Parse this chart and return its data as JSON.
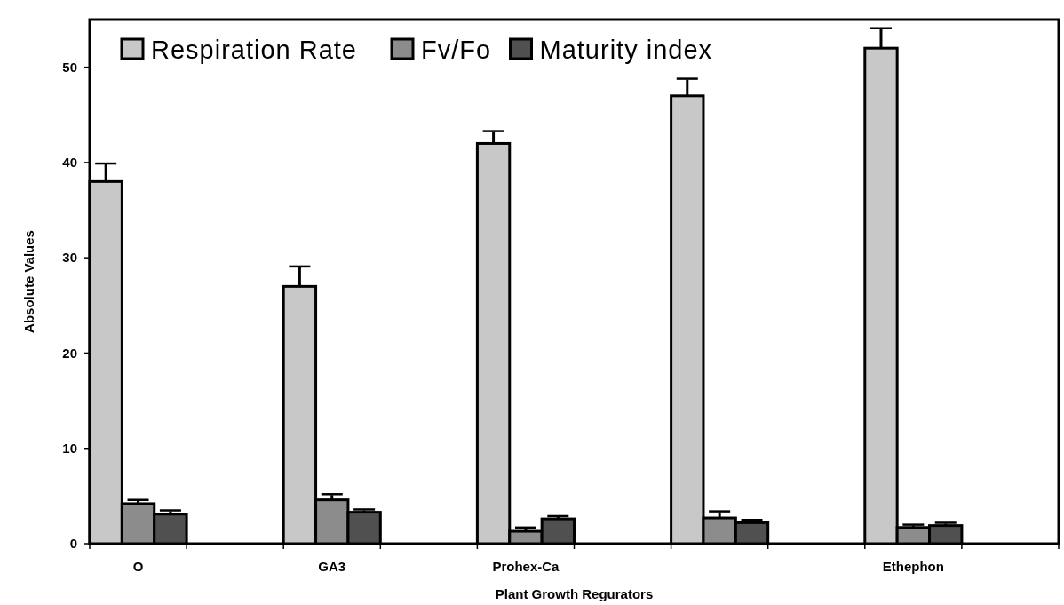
{
  "chart_data": {
    "type": "bar",
    "xlabel": "Plant Growth Regurators",
    "ylabel": "Absolute Values",
    "categories": [
      "O",
      "GA3",
      "Prohex-Ca",
      null,
      "Ethephon"
    ],
    "series": [
      {
        "name": "Respiration Rate",
        "color": "#c8c8c8",
        "values": [
          38,
          27,
          42,
          47,
          52
        ],
        "errors": [
          1.8,
          2,
          1.2,
          1.7,
          2
        ]
      },
      {
        "name": "Fv/Fo",
        "color": "#8c8c8c",
        "values": [
          4.2,
          4.6,
          1.3,
          2.7,
          1.7
        ],
        "errors": [
          0.3,
          0.5,
          0.3,
          0.6,
          0.2
        ]
      },
      {
        "name": "Maturity index",
        "color": "#505050",
        "values": [
          3.1,
          3.3,
          2.6,
          2.2,
          1.9
        ],
        "errors": [
          0.3,
          0.2,
          0.2,
          0.2,
          0.2
        ]
      }
    ],
    "ylim": [
      0,
      55
    ],
    "yticks": [
      0,
      10,
      20,
      30,
      40,
      50
    ],
    "grid": false,
    "legend": "top left"
  }
}
